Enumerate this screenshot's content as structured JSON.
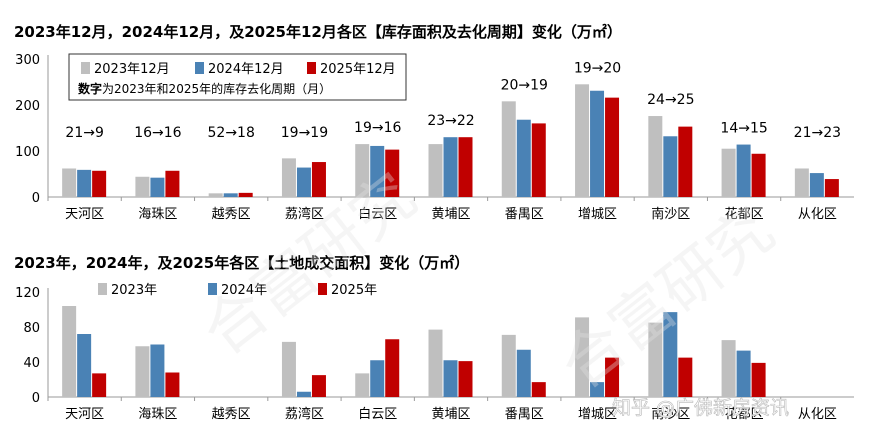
{
  "colors": {
    "y2023": "#bfbfbf",
    "y2024": "#4a82b5",
    "y2025": "#c00000",
    "axis": "#9a9a9a",
    "text": "#000000"
  },
  "watermark": {
    "main": "合富研究",
    "footer": "知乎 @广佛新房资讯"
  },
  "chart_data": [
    {
      "type": "bar",
      "title": "2023年12月，2024年12月，及2025年12月各区【库存面积及去化周期】变化（万㎡）",
      "categories": [
        "天河区",
        "海珠区",
        "越秀区",
        "荔湾区",
        "白云区",
        "黄埔区",
        "番禺区",
        "增城区",
        "南沙区",
        "花都区",
        "从化区"
      ],
      "series": [
        {
          "name": "2023年12月",
          "values": [
            62,
            44,
            8,
            84,
            115,
            115,
            208,
            245,
            176,
            105,
            62
          ]
        },
        {
          "name": "2024年12月",
          "values": [
            59,
            42,
            8,
            64,
            111,
            130,
            168,
            231,
            132,
            114,
            52
          ]
        },
        {
          "name": "2025年12月",
          "values": [
            57,
            57,
            9,
            76,
            103,
            130,
            160,
            216,
            153,
            94,
            39
          ]
        }
      ],
      "annotations": [
        "21→9",
        "16→16",
        "52→18",
        "19→19",
        "19→16",
        "23→22",
        "20→19",
        "19→20",
        "24→25",
        "14→15",
        "21→23"
      ],
      "legend_note_bold": "数字",
      "legend_note_rest": "为2023年和2025年的库存去化周期（月）",
      "yticks": [
        "0",
        "100",
        "200",
        "300"
      ],
      "ylim": [
        0,
        300
      ],
      "legend": "top-left"
    },
    {
      "type": "bar",
      "title": "2023年，2024年，及2025年各区【土地成交面积】变化（万㎡）",
      "categories": [
        "天河区",
        "海珠区",
        "越秀区",
        "荔湾区",
        "白云区",
        "黄埔区",
        "番禺区",
        "增城区",
        "南沙区",
        "花都区",
        "从化区"
      ],
      "series": [
        {
          "name": "2023年",
          "values": [
            104,
            58,
            0,
            63,
            27,
            77,
            71,
            91,
            85,
            65,
            0
          ]
        },
        {
          "name": "2024年",
          "values": [
            72,
            60,
            0,
            6,
            42,
            42,
            54,
            17,
            97,
            53,
            0
          ]
        },
        {
          "name": "2025年",
          "values": [
            27,
            28,
            0,
            25,
            66,
            41,
            17,
            45,
            45,
            39,
            0
          ]
        }
      ],
      "yticks": [
        "0",
        "40",
        "80",
        "120"
      ],
      "ylim": [
        0,
        120
      ],
      "legend": "top"
    }
  ]
}
